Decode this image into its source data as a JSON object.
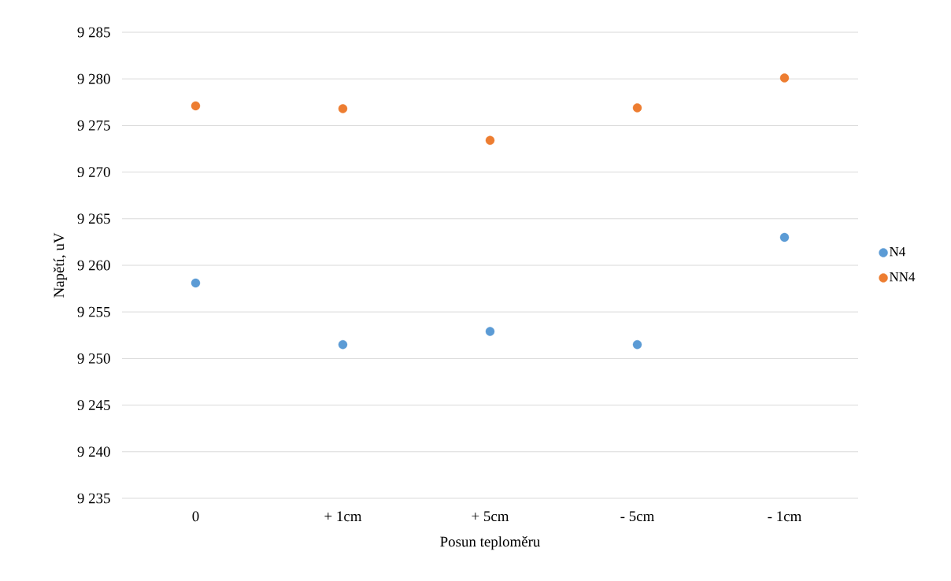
{
  "chart_data": {
    "type": "scatter",
    "xlabel": "Posun teploměru",
    "ylabel": "Napětí, uV",
    "categories": [
      "0",
      "+ 1cm",
      "+ 5cm",
      "- 5cm",
      "- 1cm"
    ],
    "series": [
      {
        "name": "N4",
        "color": "#5b9bd5",
        "values": [
          9258.1,
          9251.5,
          9252.9,
          9251.5,
          9263.0
        ]
      },
      {
        "name": "NN4",
        "color": "#ed7d31",
        "values": [
          9277.1,
          9276.8,
          9273.4,
          9276.9,
          9280.1
        ]
      }
    ],
    "ylim": [
      9235,
      9285
    ],
    "yticks": [
      {
        "value": 9235,
        "label": "9 235"
      },
      {
        "value": 9240,
        "label": "9 240"
      },
      {
        "value": 9245,
        "label": "9 245"
      },
      {
        "value": 9250,
        "label": "9 250"
      },
      {
        "value": 9255,
        "label": "9 255"
      },
      {
        "value": 9260,
        "label": "9 260"
      },
      {
        "value": 9265,
        "label": "9 265"
      },
      {
        "value": 9270,
        "label": "9 270"
      },
      {
        "value": 9275,
        "label": "9 275"
      },
      {
        "value": 9280,
        "label": "9 280"
      },
      {
        "value": 9285,
        "label": "9 285"
      }
    ],
    "grid": "y",
    "legend": "right",
    "marker": "circle"
  }
}
